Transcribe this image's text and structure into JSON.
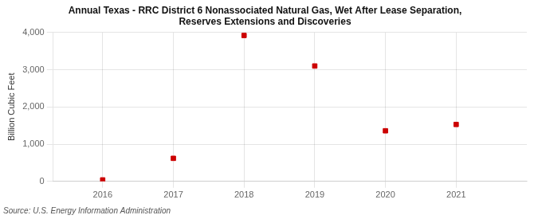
{
  "chart_data": {
    "type": "scatter",
    "title": "Annual Texas - RRC District 6 Nonassociated Natural Gas, Wet After Lease Separation,\nReserves Extensions and Discoveries",
    "y_label": "Billion Cubic Feet",
    "source": "Source: U.S. Energy Information Administration",
    "x": [
      2016,
      2017,
      2018,
      2019,
      2020,
      2021
    ],
    "values": [
      40,
      620,
      3920,
      3100,
      1360,
      1530
    ],
    "color": "#cc0000",
    "marker": "square",
    "xlim": [
      2015.3,
      2022.0
    ],
    "xticks": [
      2016,
      2017,
      2018,
      2019,
      2020,
      2021
    ],
    "ylim": [
      0,
      4000
    ],
    "yticks": [
      0,
      {
        "value": 1000,
        "label": "1,000"
      },
      {
        "value": 2000,
        "label": "2,000"
      },
      {
        "value": 3000,
        "label": "3,000"
      },
      {
        "value": 4000,
        "label": "4,000"
      }
    ],
    "grid": true
  }
}
